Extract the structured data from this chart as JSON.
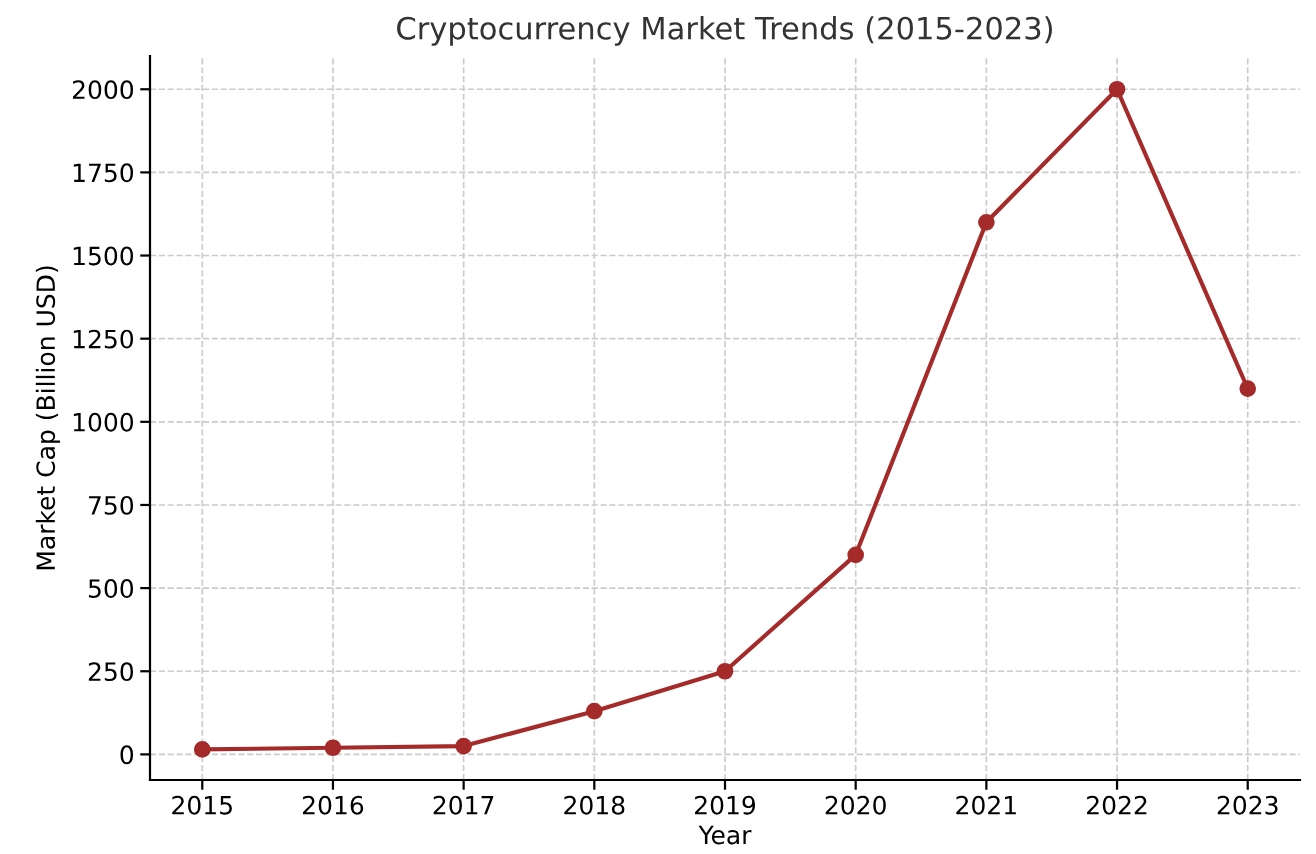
{
  "chart_data": {
    "type": "line",
    "title": "Cryptocurrency Market Trends (2015-2023)",
    "xlabel": "Year",
    "ylabel": "Market Cap (Billion USD)",
    "x": [
      2015,
      2016,
      2017,
      2018,
      2019,
      2020,
      2021,
      2022,
      2023
    ],
    "series": [
      {
        "color": "#a52a2a",
        "values": [
          15,
          20,
          25,
          130,
          250,
          600,
          1600,
          2000,
          1100
        ]
      }
    ],
    "xlim": [
      2014.6,
      2023.4
    ],
    "xticks": [
      2015,
      2016,
      2017,
      2018,
      2019,
      2020,
      2021,
      2022,
      2023
    ],
    "ylim": [
      -77,
      2100
    ],
    "yticks": [
      0,
      250,
      500,
      750,
      1000,
      1250,
      1500,
      1750,
      2000
    ],
    "grid": true,
    "marker": "circle",
    "line_style": "solid",
    "legend": false
  }
}
